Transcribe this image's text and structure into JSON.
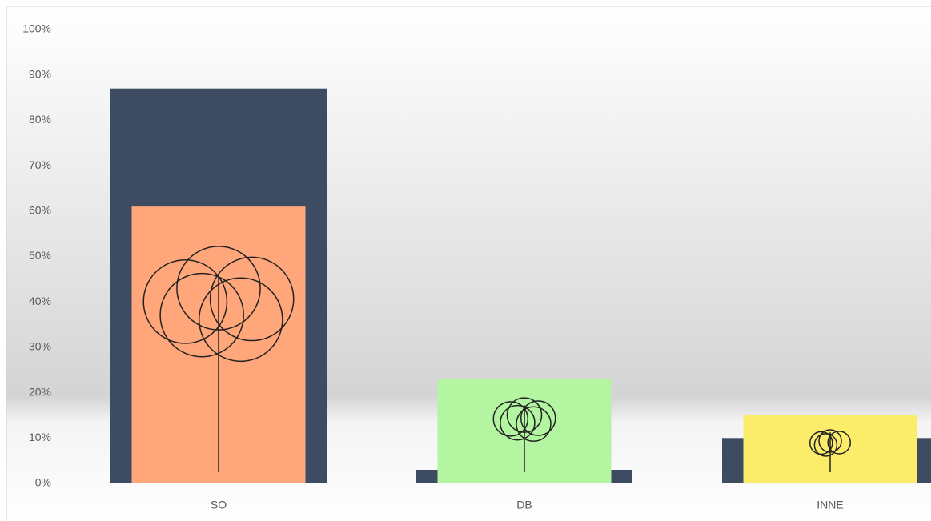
{
  "chart_data": {
    "type": "bar",
    "categories": [
      "SO",
      "DB",
      "INNE"
    ],
    "series": [
      {
        "color": "#3d4b63",
        "values": [
          87,
          3,
          10
        ]
      },
      {
        "colors": [
          "#ffa77a",
          "#b3f5a0",
          "#fbec6a"
        ],
        "values": [
          61,
          23,
          15
        ]
      }
    ],
    "ylim": [
      0,
      100
    ],
    "yticks": [
      {
        "value": 0,
        "label": "0%"
      },
      {
        "value": 10,
        "label": "10%"
      },
      {
        "value": 20,
        "label": "20%"
      },
      {
        "value": 30,
        "label": "30%"
      },
      {
        "value": 40,
        "label": "40%"
      },
      {
        "value": 50,
        "label": "50%"
      },
      {
        "value": 60,
        "label": "60%"
      },
      {
        "value": 70,
        "label": "70%"
      },
      {
        "value": 80,
        "label": "80%"
      },
      {
        "value": 90,
        "label": "90%"
      },
      {
        "value": 100,
        "label": "100%"
      }
    ],
    "grid": false
  }
}
